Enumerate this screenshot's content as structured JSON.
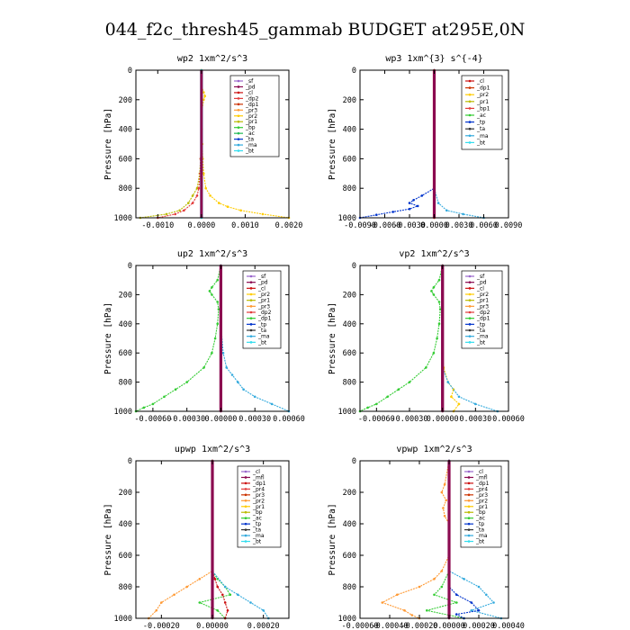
{
  "figure_title": "044_f2c_thresh45_gammab  BUDGET at295E,0N",
  "chart_data": [
    {
      "type": "line",
      "title": "wp2   1xm^2/s^3",
      "ylabel": "Pressure [hPa]",
      "xlim": [
        -0.0015,
        0.002
      ],
      "ylim": [
        1000,
        0
      ],
      "xticks": [
        -0.001,
        0.0,
        0.001,
        0.002
      ],
      "xtick_labels": [
        "-0.0010",
        "0.0000",
        "0.0010",
        "0.0020"
      ],
      "yticks": [
        0,
        200,
        400,
        600,
        800,
        1000
      ],
      "legend": [
        "_sf",
        "_pd",
        "_cl",
        "_dp2",
        "_dp1",
        "_pr3",
        "_pr2",
        "_pr1",
        "_bp",
        "_ac",
        "_ta",
        "_ma",
        "_bt"
      ],
      "legend_colors": [
        "#9966cc",
        "#8b0a50",
        "#cc1111",
        "#e23b3b",
        "#cc3300",
        "#ff9933",
        "#ffcc00",
        "#bbbb00",
        "#33cc33",
        "#22bb55",
        "#0033cc",
        "#33aadd",
        "#33ddee"
      ],
      "series": [
        {
          "name": "_pr2",
          "pressure": [
            0,
            100,
            150,
            175,
            200,
            300,
            400,
            500,
            600,
            700,
            800,
            850,
            900,
            925,
            950,
            975,
            1000
          ],
          "values": [
            0,
            0,
            5e-05,
            8e-05,
            5e-05,
            0,
            1e-05,
            2e-05,
            3e-05,
            5e-05,
            0.0001,
            0.0002,
            0.0004,
            0.0006,
            0.0009,
            0.0014,
            0.002
          ]
        },
        {
          "name": "_pr1",
          "pressure": [
            0,
            200,
            400,
            600,
            700,
            800,
            850,
            900,
            950,
            975,
            1000
          ],
          "values": [
            0,
            0,
            0,
            -2e-05,
            -4e-05,
            -0.0001,
            -0.0002,
            -0.0003,
            -0.0005,
            -0.0008,
            -0.0014
          ]
        },
        {
          "name": "_dp2",
          "pressure": [
            0,
            200,
            400,
            600,
            700,
            800,
            850,
            900,
            950,
            975,
            1000
          ],
          "values": [
            0,
            0,
            0,
            -2e-05,
            -3e-05,
            -6e-05,
            -0.0001,
            -0.0002,
            -0.0004,
            -0.0006,
            -0.001
          ]
        },
        {
          "name": "_bt",
          "pressure": [
            0,
            200,
            400,
            600,
            800,
            1000
          ],
          "values": [
            0,
            0,
            0,
            0,
            0,
            0
          ]
        }
      ]
    },
    {
      "type": "line",
      "title": "wp3   1xm^{3} s^{-4}",
      "ylabel": "Pressure [hPa]",
      "xlim": [
        -0.009,
        0.009
      ],
      "ylim": [
        1000,
        0
      ],
      "xticks": [
        -0.009,
        -0.006,
        -0.003,
        0.0,
        0.003,
        0.006,
        0.009
      ],
      "xtick_labels": [
        "-0.0090",
        "-0.0060",
        "-0.0030",
        "0.0000",
        "0.0030",
        "0.0060",
        "0.0090"
      ],
      "yticks": [
        0,
        200,
        400,
        600,
        800,
        1000
      ],
      "legend": [
        "_cl",
        "_dp1",
        "_pr2",
        "_pr1",
        "_bp1",
        "_ac",
        "_tp",
        "_ta",
        "_ma",
        "_bt"
      ],
      "legend_colors": [
        "#cc1111",
        "#cc3300",
        "#ffcc00",
        "#bbbb00",
        "#e23b3b",
        "#33cc33",
        "#0033cc",
        "#333333",
        "#33aadd",
        "#33ddee"
      ],
      "series": [
        {
          "name": "_tp",
          "pressure": [
            0,
            700,
            800,
            850,
            880,
            900,
            920,
            940,
            960,
            980,
            1000
          ],
          "values": [
            0,
            0,
            0,
            -0.0015,
            -0.0025,
            -0.003,
            -0.002,
            -0.003,
            -0.005,
            -0.007,
            -0.009
          ]
        },
        {
          "name": "_ma",
          "pressure": [
            0,
            800,
            900,
            950,
            975,
            1000
          ],
          "values": [
            0,
            0,
            0.0005,
            0.0015,
            0.0035,
            0.006
          ]
        },
        {
          "name": "_cl",
          "pressure": [
            0,
            200,
            400,
            600,
            800,
            1000
          ],
          "values": [
            0,
            0,
            0,
            0,
            0,
            0
          ]
        }
      ]
    },
    {
      "type": "line",
      "title": "up2   1xm^2/s^3",
      "ylabel": "Pressure [hPa]",
      "xlim": [
        -0.00075,
        0.0006
      ],
      "ylim": [
        1000,
        0
      ],
      "xticks": [
        -0.0006,
        -0.0003,
        0.0,
        0.0003,
        0.0006
      ],
      "xtick_labels": [
        "-0.00060",
        "-0.00030",
        "0.00000",
        "0.00030",
        "0.00060"
      ],
      "yticks": [
        0,
        200,
        400,
        600,
        800,
        1000
      ],
      "legend": [
        "_sf",
        "_pd",
        "_cl",
        "_pr2",
        "_pr1",
        "_pr3",
        "_dp2",
        "_dp1",
        "_tp",
        "_ta",
        "_ma",
        "_bt"
      ],
      "legend_colors": [
        "#9966cc",
        "#8b0a50",
        "#cc1111",
        "#ffcc00",
        "#bbbb00",
        "#ff9933",
        "#e23b3b",
        "#33cc33",
        "#0033cc",
        "#333333",
        "#33aadd",
        "#33ddee"
      ],
      "series": [
        {
          "name": "_dp1",
          "pressure": [
            0,
            100,
            150,
            175,
            200,
            250,
            300,
            400,
            500,
            600,
            700,
            800,
            850,
            900,
            950,
            975,
            1000
          ],
          "values": [
            0,
            -3e-05,
            -8e-05,
            -0.0001,
            -8e-05,
            -3e-05,
            -2e-05,
            -3e-05,
            -5e-05,
            -8e-05,
            -0.00015,
            -0.0003,
            -0.0004,
            -0.0005,
            -0.0006,
            -0.00068,
            -0.00075
          ]
        },
        {
          "name": "_ma",
          "pressure": [
            0,
            400,
            600,
            700,
            750,
            800,
            850,
            900,
            950,
            1000
          ],
          "values": [
            0,
            0,
            2e-05,
            5e-05,
            0.0001,
            0.00015,
            0.0002,
            0.0003,
            0.00045,
            0.0006
          ]
        },
        {
          "name": "_pd",
          "pressure": [
            0,
            200,
            400,
            600,
            800,
            1000
          ],
          "values": [
            0,
            0,
            0,
            0,
            0,
            0
          ]
        }
      ]
    },
    {
      "type": "line",
      "title": "vp2   1xm^2/s^3",
      "ylabel": "Pressure [hPa]",
      "xlim": [
        -0.00075,
        0.0006
      ],
      "ylim": [
        1000,
        0
      ],
      "xticks": [
        -0.0006,
        -0.0003,
        0.0,
        0.0003,
        0.0006
      ],
      "xtick_labels": [
        "-0.00060",
        "-0.00030",
        "0.00000",
        "0.00030",
        "0.00060"
      ],
      "yticks": [
        0,
        200,
        400,
        600,
        800,
        1000
      ],
      "legend": [
        "_sf",
        "_pd",
        "_cl",
        "_pr2",
        "_pr1",
        "_pr3",
        "_dp2",
        "_dp1",
        "_tp",
        "_ta",
        "_ma",
        "_bt"
      ],
      "legend_colors": [
        "#9966cc",
        "#8b0a50",
        "#cc1111",
        "#ffcc00",
        "#bbbb00",
        "#ff9933",
        "#e23b3b",
        "#33cc33",
        "#0033cc",
        "#333333",
        "#33aadd",
        "#33ddee"
      ],
      "series": [
        {
          "name": "_dp1",
          "pressure": [
            0,
            100,
            150,
            175,
            200,
            250,
            300,
            400,
            500,
            600,
            700,
            800,
            850,
            900,
            950,
            975,
            1000
          ],
          "values": [
            0,
            -3e-05,
            -8e-05,
            -0.0001,
            -8e-05,
            -3e-05,
            -2e-05,
            -3e-05,
            -5e-05,
            -8e-05,
            -0.00015,
            -0.0003,
            -0.0004,
            -0.0005,
            -0.0006,
            -0.00068,
            -0.00075
          ]
        },
        {
          "name": "_pr2",
          "pressure": [
            0,
            600,
            700,
            800,
            850,
            900,
            950,
            1000
          ],
          "values": [
            0,
            0,
            1e-05,
            5e-05,
            0.0001,
            8e-05,
            0.00015,
            0.0001
          ]
        },
        {
          "name": "_ma",
          "pressure": [
            0,
            700,
            800,
            900,
            950,
            1000
          ],
          "values": [
            0,
            0,
            5e-05,
            0.00015,
            0.0003,
            0.0005
          ]
        },
        {
          "name": "_pd",
          "pressure": [
            0,
            200,
            400,
            600,
            800,
            1000
          ],
          "values": [
            0,
            0,
            0,
            0,
            0,
            0
          ]
        }
      ]
    },
    {
      "type": "line",
      "title": "upwp   1xm^2/s^3",
      "ylabel": "Pressure [hPa]",
      "xlim": [
        -0.0003,
        0.0003
      ],
      "ylim": [
        1000,
        0
      ],
      "xticks": [
        -0.0002,
        0.0,
        0.0002
      ],
      "xtick_labels": [
        "-0.00020",
        "0.00000",
        "0.00020"
      ],
      "yticks": [
        0,
        200,
        400,
        600,
        800,
        1000
      ],
      "legend": [
        "_cl",
        "_mfl",
        "_dp1",
        "_pr4",
        "_pr3",
        "_pr2",
        "_pr1",
        "_bp",
        "_ac",
        "_tp",
        "_ta",
        "_ma",
        "_bt"
      ],
      "legend_colors": [
        "#9966cc",
        "#8b0a50",
        "#cc1111",
        "#e23b3b",
        "#cc3300",
        "#ff9933",
        "#ffcc00",
        "#bbbb00",
        "#33cc33",
        "#0033cc",
        "#333333",
        "#33aadd",
        "#33ddee"
      ],
      "series": [
        {
          "name": "_pr2",
          "pressure": [
            0,
            700,
            750,
            800,
            850,
            900,
            950,
            1000
          ],
          "values": [
            0,
            0,
            -5e-05,
            -0.0001,
            -0.00015,
            -0.0002,
            -0.00022,
            -0.00025
          ]
        },
        {
          "name": "_ac",
          "pressure": [
            0,
            700,
            750,
            800,
            850,
            900,
            950,
            1000
          ],
          "values": [
            0,
            0,
            2e-05,
            5e-05,
            7e-05,
            -5e-05,
            2e-05,
            5e-05
          ]
        },
        {
          "name": "_ma",
          "pressure": [
            0,
            700,
            800,
            850,
            900,
            950,
            1000
          ],
          "values": [
            0,
            0,
            5e-05,
            0.0001,
            0.00015,
            0.0002,
            0.00022
          ]
        },
        {
          "name": "_dp1",
          "pressure": [
            0,
            700,
            750,
            800,
            850,
            900,
            950,
            1000
          ],
          "values": [
            0,
            0,
            1e-05,
            2e-05,
            4e-05,
            5e-05,
            6e-05,
            5e-05
          ]
        },
        {
          "name": "_mfl",
          "pressure": [
            0,
            200,
            400,
            600,
            800,
            1000
          ],
          "values": [
            0,
            0,
            0,
            0,
            0,
            0
          ]
        }
      ]
    },
    {
      "type": "line",
      "title": "vpwp   1xm^2/s^3",
      "ylabel": "Pressure [hPa]",
      "xlim": [
        -0.0006,
        0.0004
      ],
      "ylim": [
        1000,
        0
      ],
      "xticks": [
        -0.0006,
        -0.0004,
        -0.0002,
        0.0,
        0.0002,
        0.0004
      ],
      "xtick_labels": [
        "-0.00060",
        "-0.00040",
        "-0.00020",
        "0.00000",
        "0.00020",
        "0.00040"
      ],
      "yticks": [
        0,
        200,
        400,
        600,
        800,
        1000
      ],
      "legend": [
        "_cl",
        "_mfl",
        "_dp1",
        "_pr4",
        "_pr3",
        "_pr2",
        "_pr1",
        "_bp",
        "_ac",
        "_tp",
        "_ta",
        "_ma",
        "_bt"
      ],
      "legend_colors": [
        "#9966cc",
        "#8b0a50",
        "#cc1111",
        "#e23b3b",
        "#cc3300",
        "#ff9933",
        "#ffcc00",
        "#bbbb00",
        "#33cc33",
        "#0033cc",
        "#333333",
        "#33aadd",
        "#33ddee"
      ],
      "series": [
        {
          "name": "_pr2",
          "pressure": [
            0,
            150,
            200,
            250,
            300,
            350,
            400,
            600,
            700,
            750,
            800,
            850,
            900,
            950,
            980,
            1000
          ],
          "values": [
            0,
            -3e-05,
            -5e-05,
            -2e-05,
            -4e-05,
            -3e-05,
            0,
            0,
            -5e-05,
            -0.0001,
            -0.0002,
            -0.00035,
            -0.00045,
            -0.0003,
            -0.00025,
            -0.0002
          ]
        },
        {
          "name": "_ma",
          "pressure": [
            0,
            700,
            750,
            800,
            850,
            900,
            950,
            1000
          ],
          "values": [
            0,
            0,
            0.0001,
            0.0002,
            0.00025,
            0.0003,
            0.00015,
            0.00035
          ]
        },
        {
          "name": "_ac",
          "pressure": [
            0,
            700,
            800,
            850,
            900,
            950,
            1000
          ],
          "values": [
            0,
            0,
            -5e-05,
            -0.0001,
            5e-05,
            -0.00015,
            0.0001
          ]
        },
        {
          "name": "_tp",
          "pressure": [
            0,
            800,
            850,
            900,
            950,
            975,
            1000
          ],
          "values": [
            0,
            0,
            5e-05,
            0.00015,
            0.0002,
            5e-05,
            0.0001
          ]
        },
        {
          "name": "_mfl",
          "pressure": [
            0,
            200,
            400,
            600,
            800,
            1000
          ],
          "values": [
            0,
            0,
            0,
            0,
            0,
            0
          ]
        }
      ]
    }
  ]
}
